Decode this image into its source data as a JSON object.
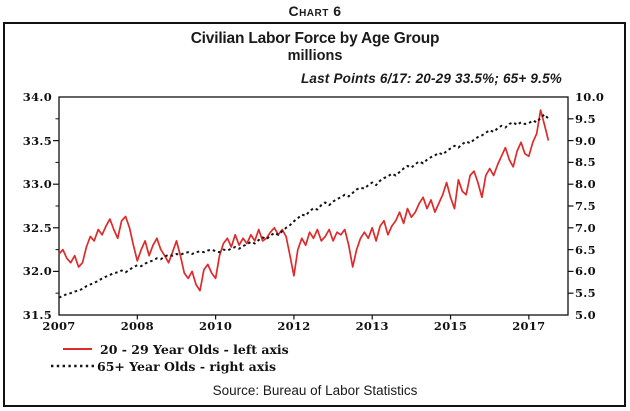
{
  "page": {
    "chart_label": "Chart 6"
  },
  "chart_data": {
    "type": "line",
    "title": "Civilian Labor Force by Age Group",
    "subtitle": "millions",
    "annotation": "Last Points 6/17: 20-29 33.5%; 65+ 9.5%",
    "source": "Source: Bureau of Labor Statistics",
    "x_axis": {
      "start": "2007-01",
      "frequency": "monthly",
      "axis_span_months": 130,
      "tick_months": [
        0,
        20,
        40,
        60,
        80,
        100,
        120
      ],
      "tick_labels": [
        "2007",
        "2008",
        "2010",
        "2012",
        "2013",
        "2015",
        "2017"
      ]
    },
    "left_axis": {
      "min": 31.5,
      "max": 34.0,
      "tick_labels": [
        "34.0",
        "33.5",
        "33.0",
        "32.5",
        "32.0",
        "31.5"
      ],
      "minor_tick_values": [
        33.75,
        33.25,
        32.75,
        32.25,
        31.75
      ]
    },
    "right_axis": {
      "min": 5.0,
      "max": 10.0,
      "tick_labels": [
        "10.0",
        "9.5",
        "9.0",
        "8.5",
        "8.0",
        "7.5",
        "7.0",
        "6.5",
        "6.0",
        "5.5",
        "5.0"
      ]
    },
    "grid": false,
    "legend_position": "bottom-left",
    "series": [
      {
        "name": "20 - 29 Year Olds - left axis",
        "axis": "left",
        "style": "solid",
        "color": "#de2a2a",
        "last_point": "6/17: 33.5",
        "values": [
          32.2,
          32.25,
          32.15,
          32.1,
          32.18,
          32.05,
          32.1,
          32.28,
          32.4,
          32.35,
          32.48,
          32.42,
          32.52,
          32.6,
          32.48,
          32.38,
          32.58,
          32.63,
          32.5,
          32.3,
          32.12,
          32.25,
          32.35,
          32.18,
          32.3,
          32.38,
          32.25,
          32.18,
          32.1,
          32.22,
          32.35,
          32.18,
          31.98,
          31.92,
          32.0,
          31.85,
          31.78,
          32.02,
          32.08,
          31.98,
          31.92,
          32.18,
          32.32,
          32.38,
          32.28,
          32.42,
          32.3,
          32.38,
          32.32,
          32.42,
          32.35,
          32.48,
          32.35,
          32.38,
          32.45,
          32.5,
          32.42,
          32.48,
          32.4,
          32.18,
          31.95,
          32.25,
          32.38,
          32.3,
          32.45,
          32.38,
          32.48,
          32.35,
          32.4,
          32.48,
          32.35,
          32.45,
          32.42,
          32.48,
          32.3,
          32.05,
          32.25,
          32.38,
          32.45,
          32.38,
          32.5,
          32.35,
          32.52,
          32.58,
          32.42,
          32.52,
          32.58,
          32.68,
          32.55,
          32.72,
          32.62,
          32.68,
          32.78,
          32.85,
          32.72,
          32.82,
          32.68,
          32.78,
          32.88,
          33.02,
          32.85,
          32.72,
          33.05,
          32.92,
          32.88,
          33.1,
          33.15,
          33.02,
          32.85,
          33.1,
          33.18,
          33.1,
          33.22,
          33.32,
          33.42,
          33.28,
          33.2,
          33.38,
          33.48,
          33.35,
          33.32,
          33.48,
          33.58,
          33.85,
          33.68,
          33.5
        ]
      },
      {
        "name": "65+ Year Olds - right axis",
        "axis": "right",
        "style": "dotted",
        "color": "#141414",
        "last_point": "6/17: 9.5",
        "values": [
          5.4,
          5.44,
          5.48,
          5.5,
          5.54,
          5.56,
          5.6,
          5.66,
          5.7,
          5.74,
          5.78,
          5.84,
          5.88,
          5.92,
          5.96,
          5.98,
          6.02,
          5.98,
          6.04,
          6.1,
          6.14,
          6.12,
          6.18,
          6.22,
          6.25,
          6.3,
          6.28,
          6.34,
          6.38,
          6.36,
          6.4,
          6.38,
          6.42,
          6.44,
          6.4,
          6.44,
          6.46,
          6.44,
          6.48,
          6.5,
          6.46,
          6.44,
          6.5,
          6.48,
          6.52,
          6.56,
          6.52,
          6.58,
          6.62,
          6.68,
          6.64,
          6.72,
          6.78,
          6.74,
          6.82,
          6.88,
          6.84,
          6.92,
          7.0,
          7.06,
          7.15,
          7.22,
          7.3,
          7.28,
          7.38,
          7.45,
          7.42,
          7.52,
          7.58,
          7.52,
          7.6,
          7.66,
          7.7,
          7.76,
          7.72,
          7.8,
          7.88,
          7.92,
          7.9,
          7.98,
          8.04,
          7.98,
          8.08,
          8.14,
          8.18,
          8.24,
          8.2,
          8.28,
          8.36,
          8.42,
          8.38,
          8.46,
          8.52,
          8.48,
          8.56,
          8.62,
          8.66,
          8.72,
          8.68,
          8.76,
          8.82,
          8.88,
          8.84,
          8.92,
          8.98,
          8.94,
          9.02,
          9.08,
          9.12,
          9.18,
          9.24,
          9.2,
          9.28,
          9.34,
          9.3,
          9.38,
          9.42,
          9.36,
          9.42,
          9.38,
          9.4,
          9.46,
          9.42,
          9.52,
          9.6,
          9.5
        ]
      }
    ]
  }
}
